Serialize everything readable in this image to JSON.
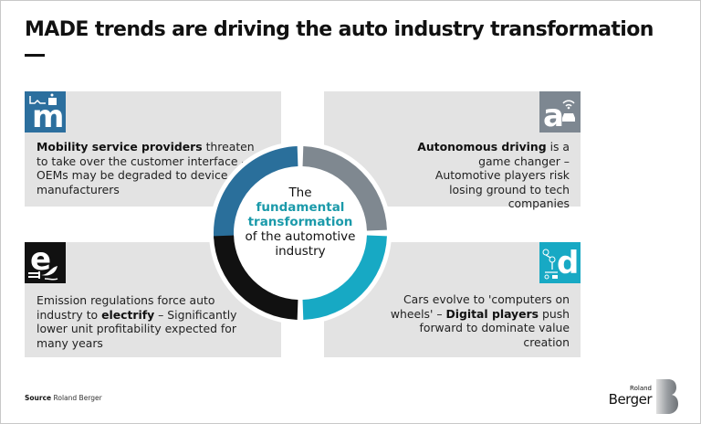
{
  "title": "MADE trends are driving the auto industry transformation",
  "center": {
    "line1": "The",
    "highlight1": "fundamental",
    "highlight2": "transformation",
    "line3": "of the automotive",
    "line4": "industry"
  },
  "panels": [
    {
      "icon": "mobility-icon",
      "letter": "m",
      "color": "#2c6f9e",
      "bold": "Mobility service providers",
      "text": " threaten to take over the customer interface – OEMs may be degraded to device manufacturers"
    },
    {
      "icon": "autonomous-car-icon",
      "letter": "a",
      "color": "#7d8791",
      "bold": "Autonomous driving",
      "text": " is a game changer – Automotive players risk losing ground to tech companies"
    },
    {
      "icon": "electric-plug-leaf-icon",
      "letter": "e",
      "color": "#111111",
      "pre": "Emission regulations force auto industry to ",
      "bold": "electrify",
      "text": " –  Significantly lower unit profitability expected for many years"
    },
    {
      "icon": "digital-circuit-icon",
      "letter": "d",
      "color": "#17a9c4",
      "pre": "Cars evolve to 'computers on wheels' – ",
      "bold": "Digital players",
      "text": " push forward to dominate value creation"
    }
  ],
  "ring_colors": {
    "mobility": "#2a6f9b",
    "autonomous": "#7f8890",
    "digital": "#17a9c4",
    "electric": "#111111"
  },
  "source": {
    "label": "Source",
    "value": "Roland Berger"
  },
  "logo": {
    "line1": "Roland",
    "line2": "Berger",
    "mark": "B"
  }
}
